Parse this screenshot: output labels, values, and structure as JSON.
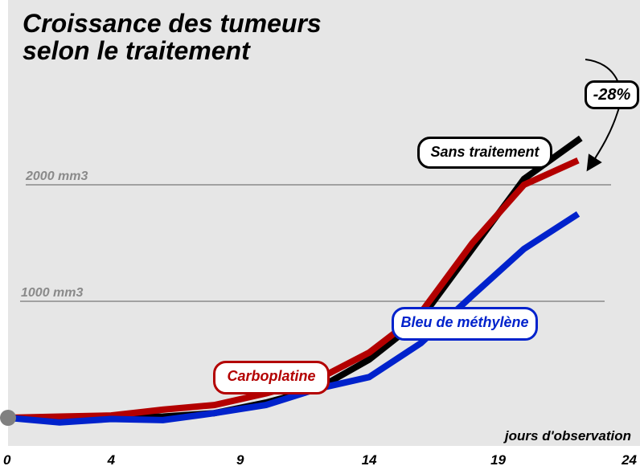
{
  "chart_data": {
    "type": "line",
    "title": "Croissance des tumeurs",
    "subtitle": "selon le traitement",
    "xlabel": "jours d'observation",
    "ylabel": "",
    "x_ticks": [
      "0",
      "4",
      "9",
      "14",
      "19",
      "24"
    ],
    "xlim": [
      0,
      24
    ],
    "ylim": [
      -60,
      2600
    ],
    "reference_lines": [
      {
        "label": "2000 mm3",
        "value": 2000
      },
      {
        "label": "1000 mm3",
        "value": 1000
      }
    ],
    "series": [
      {
        "name": "Sans traitement",
        "color": "#000000",
        "x": [
          0,
          2,
          4,
          6,
          8,
          10,
          12,
          14,
          16,
          18,
          20,
          22.2
        ],
        "y": [
          0,
          0,
          5,
          10,
          40,
          130,
          250,
          500,
          850,
          1450,
          2050,
          2400
        ]
      },
      {
        "name": "Carboplatine",
        "color": "#b30000",
        "x": [
          0,
          2,
          4,
          6,
          8,
          10,
          12,
          14,
          16,
          18,
          20,
          22.1
        ],
        "y": [
          0,
          10,
          20,
          70,
          110,
          210,
          330,
          560,
          900,
          1500,
          2000,
          2210
        ]
      },
      {
        "name": "Bleu de méthylène",
        "color": "#0022cc",
        "x": [
          0,
          2,
          4,
          6,
          8,
          10,
          12,
          14,
          16,
          18,
          20,
          22.1
        ],
        "y": [
          0,
          -40,
          -10,
          -20,
          40,
          110,
          250,
          350,
          640,
          1050,
          1450,
          1750
        ]
      }
    ],
    "annotation": {
      "text": "-28%"
    },
    "grid": false,
    "legend": "inline labels"
  }
}
